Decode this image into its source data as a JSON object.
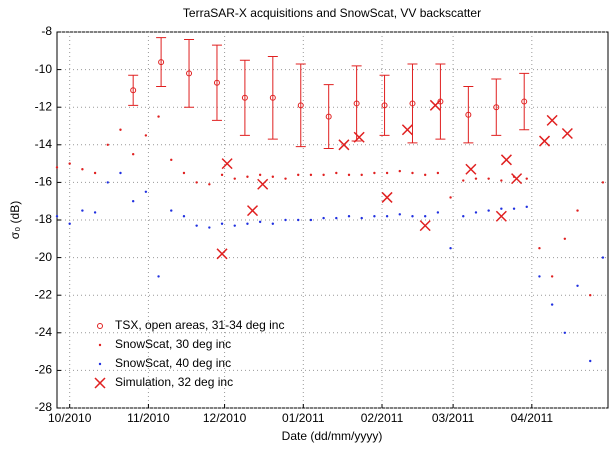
{
  "chart_data": {
    "type": "scatter",
    "title": "TerraSAR-X acquisitions and SnowScat, VV backscatter",
    "xlabel": "Date (dd/mm/yyyy)",
    "ylabel": "σ₀ (dB)",
    "xlim": [
      -5,
      212
    ],
    "ylim": [
      -28,
      -8
    ],
    "xticks": [
      {
        "value": 0,
        "label": "10/2010"
      },
      {
        "value": 31,
        "label": "11/2010"
      },
      {
        "value": 61,
        "label": "12/2010"
      },
      {
        "value": 92,
        "label": "01/2011"
      },
      {
        "value": 123,
        "label": "02/2011"
      },
      {
        "value": 151,
        "label": "03/2011"
      },
      {
        "value": 182,
        "label": "04/2011"
      }
    ],
    "yticks": [
      -28,
      -26,
      -24,
      -22,
      -20,
      -18,
      -16,
      -14,
      -12,
      -10,
      -8
    ],
    "grid": true,
    "legend": "lower left",
    "series": [
      {
        "name": "TSX, open areas, 31-34 deg inc",
        "color": "#e02020",
        "marker": "errorbar",
        "x": [
          25,
          36,
          47,
          58,
          69,
          80,
          91,
          102,
          113,
          124,
          135,
          146,
          157,
          168,
          179
        ],
        "values": [
          -11.1,
          -9.6,
          -10.2,
          -10.7,
          -11.5,
          -11.5,
          -11.9,
          -12.5,
          -11.8,
          -11.9,
          -11.8,
          -11.7,
          -12.4,
          -12.0,
          -11.7
        ],
        "errors": [
          0.8,
          1.3,
          1.8,
          2.0,
          2.0,
          2.2,
          2.2,
          1.7,
          2.0,
          1.6,
          2.1,
          2.0,
          1.5,
          1.5,
          1.5
        ]
      },
      {
        "name": "SnowScat, 30 deg inc",
        "color": "#e02020",
        "marker": "dot",
        "x": [
          -5,
          0,
          5,
          10,
          15,
          20,
          25,
          30,
          35,
          40,
          45,
          50,
          55,
          60,
          65,
          70,
          75,
          80,
          85,
          90,
          95,
          100,
          105,
          110,
          115,
          120,
          125,
          130,
          135,
          140,
          145,
          150,
          155,
          160,
          165,
          170,
          175,
          180,
          185,
          190,
          195,
          200,
          205,
          210
        ],
        "values": [
          -15.2,
          -15.0,
          -15.3,
          -15.5,
          -14.0,
          -13.2,
          -14.5,
          -13.5,
          -12.5,
          -14.8,
          -15.5,
          -16.0,
          -16.1,
          -15.6,
          -15.8,
          -15.7,
          -15.6,
          -15.7,
          -15.8,
          -15.6,
          -15.6,
          -15.6,
          -15.5,
          -15.6,
          -15.6,
          -15.5,
          -15.5,
          -15.4,
          -15.5,
          -15.6,
          -15.5,
          -16.8,
          -15.9,
          -15.8,
          -15.8,
          -15.9,
          -15.7,
          -15.8,
          -19.5,
          -21.0,
          -19.0,
          -17.5,
          -22.0,
          -16.0
        ]
      },
      {
        "name": "SnowScat, 40 deg inc",
        "color": "#2030e0",
        "marker": "dot",
        "x": [
          -5,
          0,
          5,
          10,
          15,
          20,
          25,
          30,
          35,
          40,
          45,
          50,
          55,
          60,
          65,
          70,
          75,
          80,
          85,
          90,
          95,
          100,
          105,
          110,
          115,
          120,
          125,
          130,
          135,
          140,
          145,
          150,
          155,
          160,
          165,
          170,
          175,
          180,
          185,
          190,
          195,
          200,
          205,
          210
        ],
        "values": [
          -17.8,
          -18.2,
          -17.5,
          -17.6,
          -16.0,
          -15.5,
          -17.0,
          -16.5,
          -21.0,
          -17.5,
          -17.8,
          -18.3,
          -18.4,
          -18.2,
          -18.3,
          -18.2,
          -18.1,
          -18.2,
          -18.0,
          -18.0,
          -18.0,
          -17.9,
          -17.9,
          -17.8,
          -17.9,
          -17.8,
          -17.8,
          -17.7,
          -17.8,
          -17.8,
          -17.6,
          -19.5,
          -17.8,
          -17.6,
          -17.5,
          -17.4,
          -17.4,
          -17.3,
          -21.0,
          -22.5,
          -24.0,
          -21.5,
          -25.5,
          -20.0
        ]
      },
      {
        "name": "Simulation, 32 deg inc",
        "color": "#e02020",
        "marker": "cross",
        "x": [
          60,
          62,
          72,
          76,
          108,
          114,
          125,
          133,
          140,
          144,
          158,
          170,
          172,
          176,
          187,
          190,
          196
        ],
        "values": [
          -19.8,
          -15.0,
          -17.5,
          -16.1,
          -14.0,
          -13.6,
          -16.8,
          -13.2,
          -18.3,
          -11.9,
          -15.3,
          -17.8,
          -14.8,
          -15.8,
          -13.8,
          -12.7,
          -13.4
        ]
      }
    ]
  }
}
